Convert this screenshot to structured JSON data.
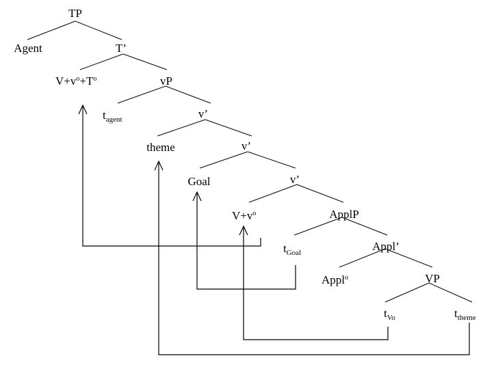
{
  "nodes": {
    "tp": "TP",
    "agent": "Agent",
    "t_bar": "T’",
    "v_complex_base": "V+v",
    "v_complex_sup1": "o",
    "v_complex_plus_t": "+T",
    "v_complex_sup2": "o",
    "vp": "vP",
    "t_agent_base": "t",
    "t_agent_sub": "agent",
    "v_bar_1": "v’",
    "theme": "theme",
    "v_bar_2": "v’",
    "goal": "Goal",
    "v_bar_3": "v’",
    "v_v_base": "V+v",
    "v_v_sup": "o",
    "applp": "ApplP",
    "t_goal_base": "t",
    "t_goal_sub": "Goal",
    "appl_bar": "Appl’",
    "appl_head_base": "Appl",
    "appl_head_sup": "o",
    "vp_lower": "VP",
    "t_vo_base": "t",
    "t_vo_sub": "Vo",
    "t_theme_base": "t",
    "t_theme_sub": "theme"
  },
  "movements": [
    {
      "from": "t_Vo",
      "to": "V+v°"
    },
    {
      "from": "t_theme",
      "to": "theme"
    },
    {
      "from": "t_Goal",
      "to": "Goal"
    },
    {
      "from": "V+v°",
      "to": "V+v°+T°"
    }
  ]
}
